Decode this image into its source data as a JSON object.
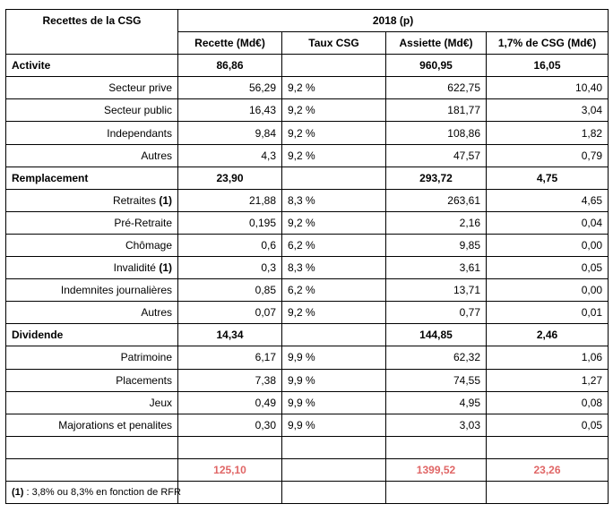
{
  "header": {
    "title": "Recettes de la CSG",
    "year": "2018 (p)",
    "columns": [
      "Recette (Md€)",
      "Taux CSG",
      "Assiette (Md€)",
      "1,7% de CSG (Md€)"
    ]
  },
  "rows": [
    {
      "type": "group",
      "label": "Activite",
      "recette": "86,86",
      "taux": "",
      "assiette": "960,95",
      "csg17": "16,05"
    },
    {
      "type": "item",
      "label": "Secteur prive",
      "marker": "",
      "recette": "56,29",
      "taux": "9,2 %",
      "assiette": "622,75",
      "csg17": "10,40"
    },
    {
      "type": "item",
      "label": "Secteur public",
      "marker": "",
      "recette": "16,43",
      "taux": "9,2 %",
      "assiette": "181,77",
      "csg17": "3,04"
    },
    {
      "type": "item",
      "label": "Independants",
      "marker": "",
      "recette": "9,84",
      "taux": "9,2 %",
      "assiette": "108,86",
      "csg17": "1,82"
    },
    {
      "type": "item",
      "label": "Autres",
      "marker": "",
      "recette": "4,3",
      "taux": "9,2 %",
      "assiette": "47,57",
      "csg17": "0,79"
    },
    {
      "type": "group",
      "label": "Remplacement",
      "recette": "23,90",
      "taux": "",
      "assiette": "293,72",
      "csg17": "4,75"
    },
    {
      "type": "item",
      "label": "Retraites",
      "marker": "(1)",
      "recette": "21,88",
      "taux": "8,3 %",
      "assiette": "263,61",
      "csg17": "4,65"
    },
    {
      "type": "item",
      "label": "Pré-Retraite",
      "marker": "",
      "recette": "0,195",
      "taux": "9,2 %",
      "assiette": "2,16",
      "csg17": "0,04"
    },
    {
      "type": "item",
      "label": "Chômage",
      "marker": "",
      "recette": "0,6",
      "taux": "6,2 %",
      "assiette": "9,85",
      "csg17": "0,00"
    },
    {
      "type": "item",
      "label": "Invalidité",
      "marker": "(1)",
      "recette": "0,3",
      "taux": "8,3 %",
      "assiette": "3,61",
      "csg17": "0,05"
    },
    {
      "type": "item",
      "label": "Indemnites journalières",
      "marker": "",
      "recette": "0,85",
      "taux": "6,2 %",
      "assiette": "13,71",
      "csg17": "0,00"
    },
    {
      "type": "item",
      "label": "Autres",
      "marker": "",
      "recette": "0,07",
      "taux": "9,2 %",
      "assiette": "0,77",
      "csg17": "0,01"
    },
    {
      "type": "group",
      "label": "Dividende",
      "recette": "14,34",
      "taux": "",
      "assiette": "144,85",
      "csg17": "2,46"
    },
    {
      "type": "item",
      "label": "Patrimoine",
      "marker": "",
      "recette": "6,17",
      "taux": "9,9 %",
      "assiette": "62,32",
      "csg17": "1,06"
    },
    {
      "type": "item",
      "label": "Placements",
      "marker": "",
      "recette": "7,38",
      "taux": "9,9 %",
      "assiette": "74,55",
      "csg17": "1,27"
    },
    {
      "type": "item",
      "label": "Jeux",
      "marker": "",
      "recette": "0,49",
      "taux": "9,9 %",
      "assiette": "4,95",
      "csg17": "0,08"
    },
    {
      "type": "item",
      "label": "Majorations et penalites",
      "marker": "",
      "recette": "0,30",
      "taux": "9,9 %",
      "assiette": "3,03",
      "csg17": "0,05"
    }
  ],
  "totals": {
    "recette": "125,10",
    "assiette": "1399,52",
    "csg17": "23,26"
  },
  "footnote": {
    "marker": "(1)",
    "text": " : 3,8% ou 8,3% en fonction de RFR"
  },
  "colors": {
    "total_text": "#e06666",
    "border": "#000000"
  }
}
